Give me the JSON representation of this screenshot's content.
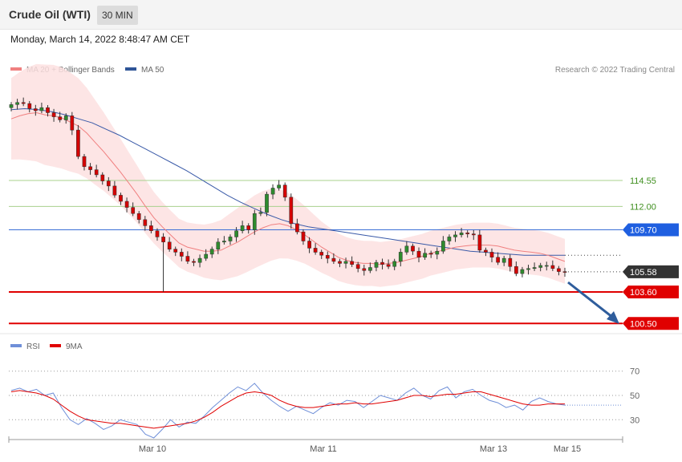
{
  "header": {
    "title": "Crude Oil (WTI)",
    "timeframe": "30 MIN",
    "datetime": "Monday, March 14, 2022 8:48:47 AM CET"
  },
  "credit": "Research © 2022 Trading Central",
  "colors": {
    "band_fill": "#fde0e0",
    "ma20": "#f08080",
    "ma50": "#3a5aa8",
    "bull": "#2e8b2e",
    "bear": "#d40000",
    "support_red": "#e00000",
    "resistance_green": "#a8d08d",
    "pivot_blue": "#3b6fd6",
    "current_price": "#333333",
    "rsi": "#6f8fd8",
    "rsi_ma": "#e00000",
    "arrow": "#2f5d9c"
  },
  "chart_data": [
    {
      "type": "line",
      "panel": "price",
      "legend": [
        {
          "name": "MA 20 + Bollinger Bands",
          "color": "#f08080"
        },
        {
          "name": "MA 50",
          "color": "#2f5597"
        }
      ],
      "x_ticks": [
        "Mar 10",
        "Mar 11",
        "Mar 13",
        "Mar 15"
      ],
      "ylim": [
        99.5,
        124
      ],
      "levels": [
        {
          "value": 114.55,
          "label": "114.55",
          "kind": "resistance"
        },
        {
          "value": 112.0,
          "label": "112.00",
          "kind": "resistance"
        },
        {
          "value": 109.7,
          "label": "109.70",
          "kind": "pivot"
        },
        {
          "value": 105.58,
          "label": "105.58",
          "kind": "current"
        },
        {
          "value": 103.6,
          "label": "103.60",
          "kind": "support"
        },
        {
          "value": 100.5,
          "label": "100.50",
          "kind": "support"
        }
      ],
      "close": [
        122.0,
        122.2,
        122.1,
        121.6,
        121.4,
        121.7,
        121.2,
        120.8,
        120.5,
        120.9,
        119.5,
        116.9,
        115.9,
        115.6,
        115.1,
        114.5,
        114.0,
        113.1,
        112.5,
        111.9,
        111.3,
        110.7,
        110.1,
        109.6,
        109.0,
        108.5,
        107.8,
        107.5,
        107.1,
        106.6,
        106.5,
        106.9,
        107.3,
        107.8,
        108.5,
        108.6,
        109.0,
        109.6,
        110.1,
        109.7,
        111.3,
        111.4,
        113.2,
        113.8,
        114.1,
        112.9,
        110.3,
        109.5,
        108.6,
        107.9,
        107.5,
        107.2,
        106.9,
        106.6,
        106.4,
        106.6,
        106.3,
        105.9,
        105.7,
        106.0,
        106.5,
        106.3,
        106.1,
        106.6,
        107.5,
        108.1,
        107.6,
        107.0,
        107.4,
        107.3,
        107.6,
        108.6,
        109.0,
        109.2,
        109.4,
        109.3,
        109.2,
        107.7,
        107.5,
        107.0,
        106.5,
        106.9,
        106.1,
        105.4,
        105.8,
        105.9,
        106.0,
        106.2,
        106.2,
        105.9,
        105.6,
        105.58
      ],
      "ma20": [
        120.6,
        120.9,
        121.1,
        121.2,
        121.0,
        120.9,
        120.7,
        120.3,
        119.9,
        119.2,
        118.3,
        117.4,
        116.4,
        115.4,
        114.3,
        113.2,
        112.0,
        110.9,
        110.0,
        109.2,
        108.4,
        108.0,
        107.8,
        107.6,
        107.6,
        107.7,
        108.1,
        108.5,
        109.0,
        109.5,
        109.9,
        110.2,
        110.3,
        110.1,
        109.7,
        109.2,
        108.6,
        108.0,
        107.5,
        107.0,
        106.7,
        106.5,
        106.4,
        106.4,
        106.3,
        106.4,
        106.5,
        106.7,
        106.9,
        107.1,
        107.4,
        107.6,
        107.8,
        108.0,
        108.1,
        108.2,
        108.2,
        108.2,
        108.1,
        107.9,
        107.7,
        107.6,
        107.5,
        107.4,
        107.2,
        106.9,
        106.6
      ],
      "ma50": [
        121.5,
        121.6,
        121.5,
        121.3,
        121.0,
        120.6,
        120.2,
        119.6,
        119.0,
        118.3,
        117.6,
        116.9,
        116.2,
        115.5,
        114.7,
        113.9,
        113.1,
        112.4,
        111.8,
        111.2,
        110.7,
        110.3,
        110.0,
        109.8,
        109.6,
        109.4,
        109.2,
        109.0,
        108.8,
        108.6,
        108.4,
        108.2,
        108.0,
        107.8,
        107.6,
        107.5,
        107.4,
        107.3,
        107.2,
        107.2,
        107.2,
        107.2
      ]
    },
    {
      "type": "line",
      "panel": "rsi",
      "legend": [
        {
          "name": "RSI",
          "color": "#6f8fd8"
        },
        {
          "name": "9MA",
          "color": "#e00000"
        }
      ],
      "ylim": [
        15,
        85
      ],
      "levels": [
        {
          "value": 70,
          "label": "70"
        },
        {
          "value": 50,
          "label": "50"
        },
        {
          "value": 30,
          "label": "30"
        }
      ],
      "rsi": [
        54,
        56,
        53,
        55,
        50,
        52,
        40,
        30,
        26,
        31,
        27,
        22,
        25,
        30,
        28,
        26,
        18,
        15,
        22,
        30,
        24,
        28,
        27,
        33,
        40,
        46,
        52,
        57,
        54,
        60,
        52,
        46,
        41,
        37,
        41,
        38,
        35,
        40,
        44,
        42,
        46,
        45,
        40,
        45,
        50,
        48,
        46,
        52,
        56,
        50,
        47,
        54,
        57,
        48,
        53,
        55,
        50,
        46,
        44,
        40,
        42,
        38,
        45,
        48,
        45,
        43,
        42
      ],
      "rsi_ma": [
        53,
        54,
        53,
        52,
        50,
        47,
        42,
        37,
        33,
        30,
        29,
        28,
        27,
        27,
        26,
        25,
        24,
        23,
        24,
        25,
        26,
        27,
        29,
        32,
        36,
        41,
        45,
        49,
        52,
        53,
        52,
        50,
        46,
        43,
        41,
        40,
        40,
        41,
        42,
        43,
        43,
        44,
        43,
        43,
        44,
        45,
        46,
        48,
        50,
        50,
        49,
        50,
        51,
        51,
        52,
        53,
        53,
        51,
        49,
        47,
        45,
        43,
        42,
        42,
        43,
        43,
        43
      ]
    }
  ]
}
